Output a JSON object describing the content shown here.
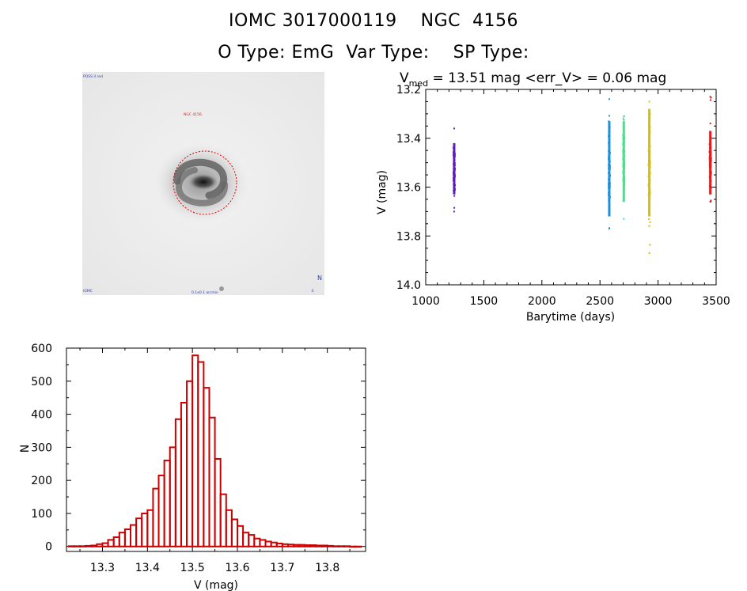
{
  "header": {
    "line1": "IOMC 3017000119    NGC  4156",
    "line2": "O Type: EmG  Var Type:    SP Type:"
  },
  "image_panel": {
    "labels": [
      "POSS II red",
      "NGC 4156",
      "IOMC",
      "0.1x0.1 arcmin",
      "N",
      "E"
    ]
  },
  "chart_data": [
    {
      "type": "scatter",
      "title_parts": [
        "V",
        "med",
        " = 13.51 mag <err_V> = 0.06 mag"
      ],
      "xlabel": "Barytime (days)",
      "ylabel": "V (mag)",
      "xlim": [
        1000,
        3500
      ],
      "ylim": [
        14.0,
        13.2
      ],
      "y_inverted": true,
      "xticks": [
        "1000",
        "1500",
        "2000",
        "2500",
        "3000",
        "3500"
      ],
      "yticks": [
        "13.2",
        "13.4",
        "13.6",
        "13.8",
        "14.0"
      ],
      "series": [
        {
          "color": "#5a1fb5",
          "x": 1245,
          "y_center": 13.55,
          "y_core": [
            13.42,
            13.63
          ],
          "y_range": [
            13.36,
            13.7
          ]
        },
        {
          "color": "#1e90d8",
          "x": 2580,
          "y_center": 13.55,
          "y_core": [
            13.33,
            13.72
          ],
          "y_range": [
            13.24,
            13.77
          ]
        },
        {
          "color": "#3be88c",
          "x": 2705,
          "y_center": 13.52,
          "y_core": [
            13.33,
            13.66
          ],
          "y_range": [
            13.31,
            13.73
          ]
        },
        {
          "color": "#d4c200",
          "x": 2925,
          "y_center": 13.5,
          "y_core": [
            13.28,
            13.72
          ],
          "y_range": [
            13.25,
            13.87
          ]
        },
        {
          "color": "#e21d1d",
          "x": 3450,
          "y_center": 13.5,
          "y_core": [
            13.37,
            13.63
          ],
          "y_range": [
            13.23,
            13.66
          ]
        }
      ],
      "grid": false
    },
    {
      "type": "bar",
      "subtype": "histogram",
      "xlabel": "V (mag)",
      "ylabel": "N",
      "xlim": [
        13.22,
        13.885
      ],
      "ylim": [
        -15,
        600
      ],
      "xticks": [
        "13.3",
        "13.4",
        "13.5",
        "13.6",
        "13.7",
        "13.8"
      ],
      "yticks": [
        "0",
        "100",
        "200",
        "300",
        "400",
        "500",
        "600"
      ],
      "bin_start": 13.225,
      "bin_width": 0.0125,
      "values": [
        1,
        1,
        1,
        2,
        3,
        7,
        10,
        20,
        28,
        42,
        52,
        65,
        85,
        100,
        110,
        175,
        215,
        260,
        300,
        385,
        435,
        500,
        578,
        558,
        480,
        390,
        265,
        158,
        110,
        82,
        62,
        42,
        35,
        24,
        20,
        15,
        12,
        9,
        7,
        6,
        5,
        5,
        4,
        4,
        3,
        3,
        2,
        1,
        1,
        1,
        0,
        0
      ],
      "color": "#cc0000",
      "grid": false
    }
  ]
}
